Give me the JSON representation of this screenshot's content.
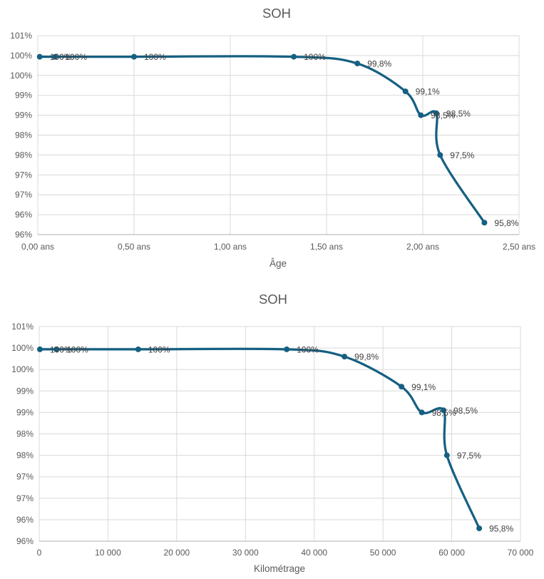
{
  "page": {
    "background": "#ffffff"
  },
  "style": {
    "grid_color": "#d9d9d9",
    "axis_color": "#bfbfbf",
    "tick_text_color": "#595959",
    "data_label_color": "#404040",
    "title_color": "#595959",
    "line_color": "#156082",
    "marker_color": "#156082"
  },
  "chart_data": [
    {
      "type": "line",
      "title": "SOH",
      "xlabel": "Âge",
      "ylabel": "",
      "smooth": true,
      "grid": true,
      "legend": "none",
      "line_color": "#156082",
      "x": [
        0.01,
        0.09,
        0.5,
        1.33,
        1.66,
        1.91,
        1.99,
        2.07,
        2.09,
        2.32
      ],
      "values": [
        99.97,
        99.97,
        99.97,
        99.97,
        99.8,
        99.1,
        98.5,
        98.55,
        97.5,
        95.8
      ],
      "point_labels": [
        "100%",
        "100%",
        "100%",
        "100%",
        "99,8%",
        "99,1%",
        "98,5%",
        "98,5%",
        "97,5%",
        "95,8%"
      ],
      "xlim": [
        0,
        2.5
      ],
      "ylim": [
        95.5,
        100.5
      ],
      "x_ticks": [
        0,
        0.5,
        1.0,
        1.5,
        2.0,
        2.5
      ],
      "x_tick_labels": [
        "0,00 ans",
        "0,50 ans",
        "1,00 ans",
        "1,50 ans",
        "2,00 ans",
        "2,50 ans"
      ],
      "y_tick_labels": [
        "101%",
        "100%",
        "100%",
        "99%",
        "99%",
        "98%",
        "98%",
        "97%",
        "97%",
        "96%",
        "96%"
      ]
    },
    {
      "type": "line",
      "title": "SOH",
      "xlabel": "Kilométrage",
      "ylabel": "",
      "smooth": true,
      "grid": true,
      "legend": "none",
      "line_color": "#156082",
      "x": [
        100,
        2500,
        14400,
        36000,
        44400,
        52700,
        55650,
        58800,
        59300,
        64000
      ],
      "values": [
        99.97,
        99.97,
        99.97,
        99.97,
        99.8,
        99.1,
        98.5,
        98.55,
        97.5,
        95.8
      ],
      "point_labels": [
        "100%",
        "100%",
        "100%",
        "100%",
        "99,8%",
        "99,1%",
        "98,5%",
        "98,5%",
        "97,5%",
        "95,8%"
      ],
      "xlim": [
        0,
        70000
      ],
      "ylim": [
        95.5,
        100.5
      ],
      "x_ticks": [
        0,
        10000,
        20000,
        30000,
        40000,
        50000,
        60000,
        70000
      ],
      "x_tick_labels": [
        "0",
        "10 000",
        "20 000",
        "30 000",
        "40 000",
        "50 000",
        "60 000",
        "70 000"
      ],
      "y_tick_labels": [
        "101%",
        "100%",
        "100%",
        "99%",
        "99%",
        "98%",
        "98%",
        "97%",
        "97%",
        "96%",
        "96%"
      ]
    }
  ]
}
